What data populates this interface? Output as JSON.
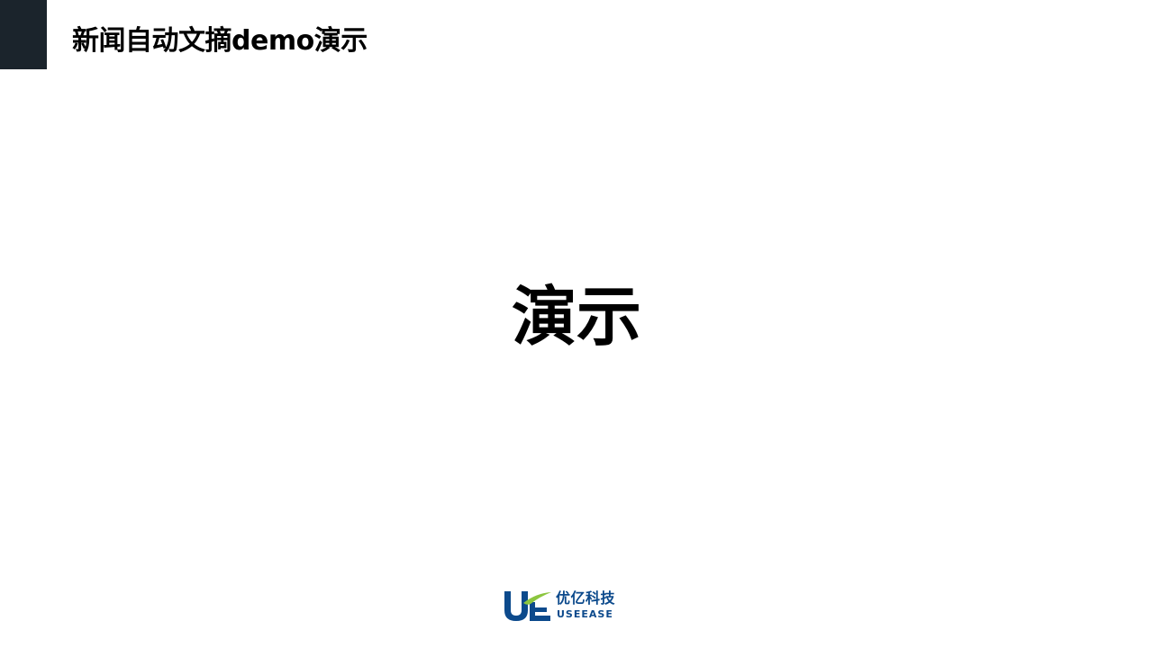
{
  "slide": {
    "title": "新闻自动文摘demo演示",
    "center_heading": "演示"
  },
  "logo": {
    "name_cn": "优亿科技",
    "name_en": "USEEASE",
    "primary_color": "#0c4a8c",
    "accent_color": "#8cc63f",
    "icon": "ue-logo-mark-icon"
  },
  "colors": {
    "corner_block": "#1b242c",
    "background": "#ffffff",
    "text": "#000000"
  }
}
